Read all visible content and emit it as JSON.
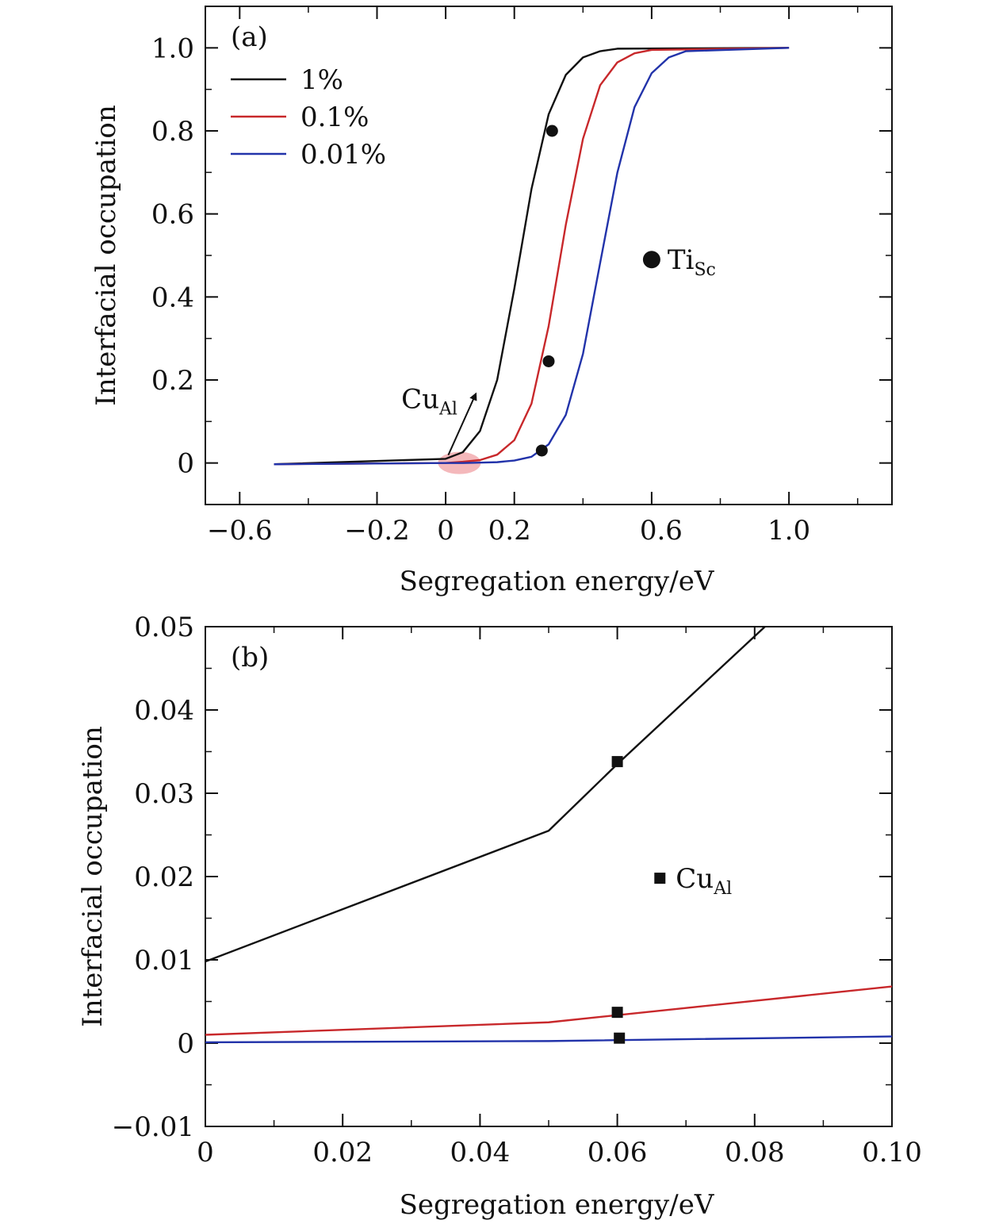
{
  "chart_data": [
    {
      "panel": "(a)",
      "type": "line",
      "xlabel": "Segregation energy/eV",
      "ylabel": "Interfacial occupation",
      "xlim": [
        -0.7,
        1.3
      ],
      "ylim": [
        -0.1,
        1.1
      ],
      "xticks": [
        -0.6,
        -0.2,
        0,
        0.2,
        0.6,
        1.0
      ],
      "xtick_labels": [
        "−0.6",
        "−0.2",
        "0",
        "0.2",
        "0.6",
        "1.0"
      ],
      "yticks": [
        0,
        0.2,
        0.4,
        0.6,
        0.8,
        1.0
      ],
      "ytick_labels": [
        "0",
        "0.2",
        "0.4",
        "0.6",
        "0.8",
        "1.0"
      ],
      "series": [
        {
          "name": "1%",
          "color": "#111111",
          "x": [
            -0.5,
            0.0,
            0.05,
            0.1,
            0.15,
            0.2,
            0.25,
            0.3,
            0.35,
            0.4,
            0.45,
            0.5,
            1.0
          ],
          "y": [
            -0.003,
            0.01,
            0.026,
            0.077,
            0.2,
            0.42,
            0.66,
            0.84,
            0.935,
            0.977,
            0.992,
            0.998,
            1.0
          ]
        },
        {
          "name": "0.1%",
          "color": "#c8282b",
          "x": [
            -0.5,
            0.0,
            0.05,
            0.1,
            0.15,
            0.2,
            0.25,
            0.3,
            0.35,
            0.4,
            0.45,
            0.5,
            0.55,
            0.6,
            1.0
          ],
          "y": [
            -0.003,
            0.0,
            0.003,
            0.007,
            0.02,
            0.055,
            0.143,
            0.33,
            0.574,
            0.781,
            0.91,
            0.965,
            0.987,
            0.995,
            1.0
          ]
        },
        {
          "name": "0.01%",
          "color": "#2233aa",
          "x": [
            -0.5,
            0.0,
            0.05,
            0.1,
            0.15,
            0.2,
            0.25,
            0.3,
            0.35,
            0.4,
            0.45,
            0.5,
            0.55,
            0.6,
            0.65,
            0.7,
            1.0
          ],
          "y": [
            -0.003,
            0.0,
            0.0,
            0.001,
            0.002,
            0.006,
            0.015,
            0.045,
            0.116,
            0.263,
            0.482,
            0.699,
            0.857,
            0.939,
            0.977,
            0.992,
            1.0
          ]
        }
      ],
      "markers": [
        {
          "x": 0.31,
          "y": 0.8
        },
        {
          "x": 0.3,
          "y": 0.245
        },
        {
          "x": 0.28,
          "y": 0.03
        }
      ],
      "legend": {
        "placement": "top-left",
        "entries": [
          "1%",
          "0.1%",
          "0.01%"
        ]
      },
      "annotations": [
        {
          "type": "marker-label",
          "marker": "circle",
          "text": "Ti",
          "subscript": "Sc",
          "x": 0.6,
          "y": 0.49
        },
        {
          "type": "arrow-label",
          "text": "Cu",
          "subscript": "Al",
          "x": -0.12,
          "y": 0.14,
          "highlight_x": 0.04,
          "highlight_y": 0.0,
          "highlight_color": "#f4b8bb"
        }
      ]
    },
    {
      "panel": "(b)",
      "type": "line",
      "xlabel": "Segregation energy/eV",
      "ylabel": "Interfacial occupation",
      "xlim": [
        0,
        0.1
      ],
      "ylim": [
        -0.01,
        0.05
      ],
      "xticks": [
        0,
        0.02,
        0.04,
        0.06,
        0.08,
        0.1
      ],
      "xtick_labels": [
        "0",
        "0.02",
        "0.04",
        "0.06",
        "0.08",
        "0.10"
      ],
      "yticks": [
        -0.01,
        0,
        0.01,
        0.02,
        0.03,
        0.04,
        0.05
      ],
      "ytick_labels": [
        "−0.01",
        "0",
        "0.01",
        "0.02",
        "0.03",
        "0.04",
        "0.05"
      ],
      "series": [
        {
          "name": "1%",
          "color": "#111111",
          "x": [
            0,
            0.05,
            0.06,
            0.0815
          ],
          "y": [
            0.0098,
            0.0255,
            0.0335,
            0.05
          ]
        },
        {
          "name": "0.1%",
          "color": "#c8282b",
          "x": [
            0,
            0.05,
            0.1
          ],
          "y": [
            0.001,
            0.0025,
            0.0068
          ]
        },
        {
          "name": "0.01%",
          "color": "#2233aa",
          "x": [
            0,
            0.05,
            0.1
          ],
          "y": [
            0.0001,
            0.00025,
            0.0008
          ]
        }
      ],
      "markers": [
        {
          "x": 0.06,
          "y": 0.0338
        },
        {
          "x": 0.06,
          "y": 0.0037
        },
        {
          "x": 0.0603,
          "y": 0.0006
        }
      ],
      "annotations": [
        {
          "type": "marker-label",
          "marker": "square",
          "text": "Cu",
          "subscript": "Al",
          "x": 0.0662,
          "y": 0.0198
        }
      ]
    }
  ]
}
